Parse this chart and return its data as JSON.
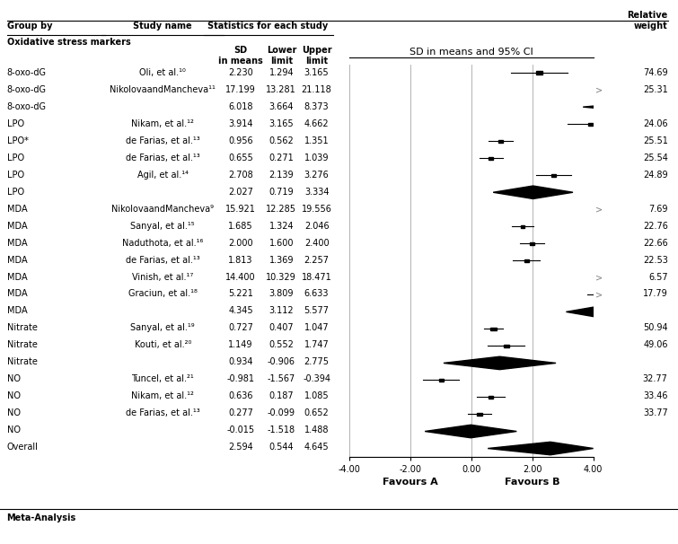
{
  "rows": [
    {
      "group": "8-oxo-dG",
      "study": "Oli, et al.¹⁰",
      "sd": 2.23,
      "lower": 1.294,
      "upper": 3.165,
      "weight": 74.69,
      "is_summary": false,
      "out_of_range": false
    },
    {
      "group": "8-oxo-dG",
      "study": "NikolovaandMancheva¹¹",
      "sd": 17.199,
      "lower": 13.281,
      "upper": 21.118,
      "weight": 25.31,
      "is_summary": false,
      "out_of_range": true
    },
    {
      "group": "8-oxo-dG",
      "study": "",
      "sd": 6.018,
      "lower": 3.664,
      "upper": 8.373,
      "weight": null,
      "is_summary": true,
      "out_of_range": true
    },
    {
      "group": "LPO",
      "study": "Nikam, et al.¹²",
      "sd": 3.914,
      "lower": 3.165,
      "upper": 4.662,
      "weight": 24.06,
      "is_summary": false,
      "out_of_range": false
    },
    {
      "group": "LPO*",
      "study": "de Farias, et al.¹³",
      "sd": 0.956,
      "lower": 0.562,
      "upper": 1.351,
      "weight": 25.51,
      "is_summary": false,
      "out_of_range": false
    },
    {
      "group": "LPO",
      "study": "de Farias, et al.¹³",
      "sd": 0.655,
      "lower": 0.271,
      "upper": 1.039,
      "weight": 25.54,
      "is_summary": false,
      "out_of_range": false
    },
    {
      "group": "LPO",
      "study": "Agil, et al.¹⁴",
      "sd": 2.708,
      "lower": 2.139,
      "upper": 3.276,
      "weight": 24.89,
      "is_summary": false,
      "out_of_range": false
    },
    {
      "group": "LPO",
      "study": "",
      "sd": 2.027,
      "lower": 0.719,
      "upper": 3.334,
      "weight": null,
      "is_summary": true,
      "out_of_range": false
    },
    {
      "group": "MDA",
      "study": "NikolovaandMancheva⁹",
      "sd": 15.921,
      "lower": 12.285,
      "upper": 19.556,
      "weight": 7.69,
      "is_summary": false,
      "out_of_range": true
    },
    {
      "group": "MDA",
      "study": "Sanyal, et al.¹⁵",
      "sd": 1.685,
      "lower": 1.324,
      "upper": 2.046,
      "weight": 22.76,
      "is_summary": false,
      "out_of_range": false
    },
    {
      "group": "MDA",
      "study": "Naduthota, et al.¹⁶",
      "sd": 2.0,
      "lower": 1.6,
      "upper": 2.4,
      "weight": 22.66,
      "is_summary": false,
      "out_of_range": false
    },
    {
      "group": "MDA",
      "study": "de Farias, et al.¹³",
      "sd": 1.813,
      "lower": 1.369,
      "upper": 2.257,
      "weight": 22.53,
      "is_summary": false,
      "out_of_range": false
    },
    {
      "group": "MDA",
      "study": "Vinish, et al.¹⁷",
      "sd": 14.4,
      "lower": 10.329,
      "upper": 18.471,
      "weight": 6.57,
      "is_summary": false,
      "out_of_range": true
    },
    {
      "group": "MDA",
      "study": "Graciun, et al.¹⁸",
      "sd": 5.221,
      "lower": 3.809,
      "upper": 6.633,
      "weight": 17.79,
      "is_summary": false,
      "out_of_range": true
    },
    {
      "group": "MDA",
      "study": "",
      "sd": 4.345,
      "lower": 3.112,
      "upper": 5.577,
      "weight": null,
      "is_summary": true,
      "out_of_range": true
    },
    {
      "group": "Nitrate",
      "study": "Sanyal, et al.¹⁹",
      "sd": 0.727,
      "lower": 0.407,
      "upper": 1.047,
      "weight": 50.94,
      "is_summary": false,
      "out_of_range": false
    },
    {
      "group": "Nitrate",
      "study": "Kouti, et al.²⁰",
      "sd": 1.149,
      "lower": 0.552,
      "upper": 1.747,
      "weight": 49.06,
      "is_summary": false,
      "out_of_range": false
    },
    {
      "group": "Nitrate",
      "study": "",
      "sd": 0.934,
      "lower": -0.906,
      "upper": 2.775,
      "weight": null,
      "is_summary": true,
      "out_of_range": false
    },
    {
      "group": "NO",
      "study": "Tuncel, et al.²¹",
      "sd": -0.981,
      "lower": -1.567,
      "upper": -0.394,
      "weight": 32.77,
      "is_summary": false,
      "out_of_range": false
    },
    {
      "group": "NO",
      "study": "Nikam, et al.¹²",
      "sd": 0.636,
      "lower": 0.187,
      "upper": 1.085,
      "weight": 33.46,
      "is_summary": false,
      "out_of_range": false
    },
    {
      "group": "NO",
      "study": "de Farias, et al.¹³",
      "sd": 0.277,
      "lower": -0.099,
      "upper": 0.652,
      "weight": 33.77,
      "is_summary": false,
      "out_of_range": false
    },
    {
      "group": "NO",
      "study": "",
      "sd": -0.015,
      "lower": -1.518,
      "upper": 1.488,
      "weight": null,
      "is_summary": true,
      "out_of_range": false
    },
    {
      "group": "Overall",
      "study": "",
      "sd": 2.594,
      "lower": 0.544,
      "upper": 4.645,
      "weight": null,
      "is_summary": true,
      "out_of_range": true
    }
  ],
  "xmin": -4.0,
  "xmax": 4.0,
  "xticks": [
    -4.0,
    -2.0,
    0.0,
    2.0,
    4.0
  ],
  "xtick_labels": [
    "-4.00",
    "-2.00",
    "0.00",
    "2.00",
    "4.00"
  ],
  "favours_a": "Favours A",
  "favours_b": "Favours B"
}
